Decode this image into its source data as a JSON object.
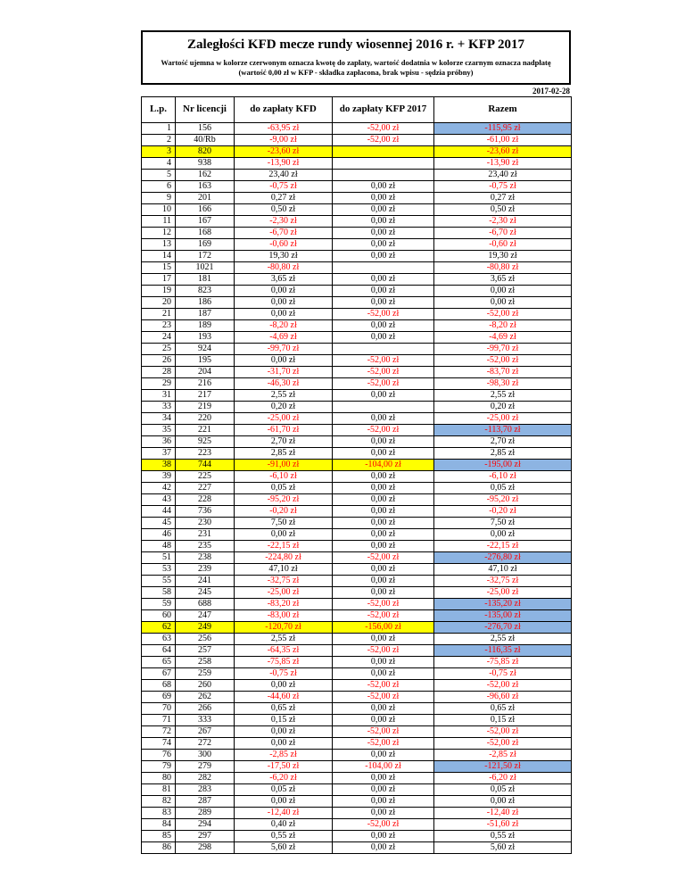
{
  "document": {
    "title": "Zaległości KFD mecze rundy wiosennej 2016 r. + KFP 2017",
    "note_line1": "Wartość ujemna w kolorze czerwonym oznacza kwotę do zapłaty, wartość dodatnia w kolorze czarnym oznacza nadpłatę",
    "note_line2": "(wartość 0,00 zł w KFP - składka zapłacona, brak wpisu - sędzia próbny)",
    "date": "2017-02-28"
  },
  "colors": {
    "negative_text": "#ff0000",
    "positive_text": "#000000",
    "row_highlight_yellow": "#ffff00",
    "razem_highlight_blue": "#8db4e2"
  },
  "table": {
    "columns": [
      "L.p.",
      "Nr licencji",
      "do zapłaty KFD",
      "do zapłaty KFP 2017",
      "Razem"
    ],
    "rows": [
      {
        "lp": "1",
        "nr": "156",
        "kfd": "-63,95 zł",
        "kfp": "-52,00 zł",
        "razem": "-115,95 zł",
        "razem_bg": "blue"
      },
      {
        "lp": "2",
        "nr": "40/Rb",
        "kfd": "-9,00 zł",
        "kfp": "-52,00 zł",
        "razem": "-61,00 zł"
      },
      {
        "lp": "3",
        "nr": "820",
        "kfd": "-23,60 zł",
        "kfp": "",
        "razem": "-23,60 zł",
        "row_bg": "yellow"
      },
      {
        "lp": "4",
        "nr": "938",
        "kfd": "-13,90 zł",
        "kfp": "",
        "razem": "-13,90 zł"
      },
      {
        "lp": "5",
        "nr": "162",
        "kfd": "23,40 zł",
        "kfp": "",
        "razem": "23,40 zł"
      },
      {
        "lp": "6",
        "nr": "163",
        "kfd": "-0,75 zł",
        "kfp": "0,00 zł",
        "razem": "-0,75 zł"
      },
      {
        "lp": "9",
        "nr": "201",
        "kfd": "0,27 zł",
        "kfp": "0,00 zł",
        "razem": "0,27 zł"
      },
      {
        "lp": "10",
        "nr": "166",
        "kfd": "0,50 zł",
        "kfp": "0,00 zł",
        "razem": "0,50 zł"
      },
      {
        "lp": "11",
        "nr": "167",
        "kfd": "-2,30 zł",
        "kfp": "0,00 zł",
        "razem": "-2,30 zł"
      },
      {
        "lp": "12",
        "nr": "168",
        "kfd": "-6,70 zł",
        "kfp": "0,00 zł",
        "razem": "-6,70 zł"
      },
      {
        "lp": "13",
        "nr": "169",
        "kfd": "-0,60 zł",
        "kfp": "0,00 zł",
        "razem": "-0,60 zł"
      },
      {
        "lp": "14",
        "nr": "172",
        "kfd": "19,30 zł",
        "kfp": "0,00 zł",
        "razem": "19,30 zł"
      },
      {
        "lp": "15",
        "nr": "1021",
        "kfd": "-80,80 zł",
        "kfp": "",
        "razem": "-80,80 zł"
      },
      {
        "lp": "17",
        "nr": "181",
        "kfd": "3,65 zł",
        "kfp": "0,00 zł",
        "razem": "3,65 zł"
      },
      {
        "lp": "19",
        "nr": "823",
        "kfd": "0,00 zł",
        "kfp": "0,00 zł",
        "razem": "0,00 zł"
      },
      {
        "lp": "20",
        "nr": "186",
        "kfd": "0,00 zł",
        "kfp": "0,00 zł",
        "razem": "0,00 zł"
      },
      {
        "lp": "21",
        "nr": "187",
        "kfd": "0,00 zł",
        "kfp": "-52,00 zł",
        "razem": "-52,00 zł"
      },
      {
        "lp": "23",
        "nr": "189",
        "kfd": "-8,20 zł",
        "kfp": "0,00 zł",
        "razem": "-8,20 zł"
      },
      {
        "lp": "24",
        "nr": "193",
        "kfd": "-4,69 zł",
        "kfp": "0,00 zł",
        "razem": "-4,69 zł"
      },
      {
        "lp": "25",
        "nr": "924",
        "kfd": "-99,70 zł",
        "kfp": "",
        "razem": "-99,70 zł"
      },
      {
        "lp": "26",
        "nr": "195",
        "kfd": "0,00 zł",
        "kfp": "-52,00 zł",
        "razem": "-52,00 zł"
      },
      {
        "lp": "28",
        "nr": "204",
        "kfd": "-31,70 zł",
        "kfp": "-52,00 zł",
        "razem": "-83,70 zł"
      },
      {
        "lp": "29",
        "nr": "216",
        "kfd": "-46,30 zł",
        "kfp": "-52,00 zł",
        "razem": "-98,30 zł"
      },
      {
        "lp": "31",
        "nr": "217",
        "kfd": "2,55 zł",
        "kfp": "0,00 zł",
        "razem": "2,55 zł"
      },
      {
        "lp": "33",
        "nr": "219",
        "kfd": "0,20 zł",
        "kfp": "",
        "razem": "0,20 zł"
      },
      {
        "lp": "34",
        "nr": "220",
        "kfd": "-25,00 zł",
        "kfp": "0,00 zł",
        "razem": "-25,00 zł"
      },
      {
        "lp": "35",
        "nr": "221",
        "kfd": "-61,70 zł",
        "kfp": "-52,00 zł",
        "razem": "-113,70 zł",
        "razem_bg": "blue"
      },
      {
        "lp": "36",
        "nr": "925",
        "kfd": "2,70 zł",
        "kfp": "0,00 zł",
        "razem": "2,70 zł"
      },
      {
        "lp": "37",
        "nr": "223",
        "kfd": "2,85 zł",
        "kfp": "0,00 zł",
        "razem": "2,85 zł"
      },
      {
        "lp": "38",
        "nr": "744",
        "kfd": "-91,00 zł",
        "kfp": "-104,00 zł",
        "razem": "-195,00 zł",
        "row_bg": "yellow",
        "razem_bg": "blue"
      },
      {
        "lp": "39",
        "nr": "225",
        "kfd": "-6,10 zł",
        "kfp": "0,00 zł",
        "razem": "-6,10 zł"
      },
      {
        "lp": "42",
        "nr": "227",
        "kfd": "0,05 zł",
        "kfp": "0,00 zł",
        "razem": "0,05 zł"
      },
      {
        "lp": "43",
        "nr": "228",
        "kfd": "-95,20 zł",
        "kfp": "0,00 zł",
        "razem": "-95,20 zł"
      },
      {
        "lp": "44",
        "nr": "736",
        "kfd": "-0,20 zł",
        "kfp": "0,00 zł",
        "razem": "-0,20 zł"
      },
      {
        "lp": "45",
        "nr": "230",
        "kfd": "7,50 zł",
        "kfp": "0,00 zł",
        "razem": "7,50 zł"
      },
      {
        "lp": "46",
        "nr": "231",
        "kfd": "0,00 zł",
        "kfp": "0,00 zł",
        "razem": "0,00 zł"
      },
      {
        "lp": "48",
        "nr": "235",
        "kfd": "-22,15 zł",
        "kfp": "0,00 zł",
        "razem": "-22,15 zł"
      },
      {
        "lp": "51",
        "nr": "238",
        "kfd": "-224,80 zł",
        "kfp": "-52,00 zł",
        "razem": "-276,80 zł",
        "razem_bg": "blue"
      },
      {
        "lp": "53",
        "nr": "239",
        "kfd": "47,10 zł",
        "kfp": "0,00 zł",
        "razem": "47,10 zł"
      },
      {
        "lp": "55",
        "nr": "241",
        "kfd": "-32,75 zł",
        "kfp": "0,00 zł",
        "razem": "-32,75 zł"
      },
      {
        "lp": "58",
        "nr": "245",
        "kfd": "-25,00 zł",
        "kfp": "0,00 zł",
        "razem": "-25,00 zł"
      },
      {
        "lp": "59",
        "nr": "688",
        "kfd": "-83,20 zł",
        "kfp": "-52,00 zł",
        "razem": "-135,20 zł",
        "razem_bg": "blue"
      },
      {
        "lp": "60",
        "nr": "247",
        "kfd": "-83,00 zł",
        "kfp": "-52,00 zł",
        "razem": "-135,00 zł",
        "razem_bg": "blue"
      },
      {
        "lp": "62",
        "nr": "249",
        "kfd": "-120,70 zł",
        "kfp": "-156,00 zł",
        "razem": "-276,70 zł",
        "row_bg": "yellow",
        "razem_bg": "blue"
      },
      {
        "lp": "63",
        "nr": "256",
        "kfd": "2,55 zł",
        "kfp": "0,00 zł",
        "razem": "2,55 zł"
      },
      {
        "lp": "64",
        "nr": "257",
        "kfd": "-64,35 zł",
        "kfp": "-52,00 zł",
        "razem": "-116,35 zł",
        "razem_bg": "blue"
      },
      {
        "lp": "65",
        "nr": "258",
        "kfd": "-75,85 zł",
        "kfp": "0,00 zł",
        "razem": "-75,85 zł"
      },
      {
        "lp": "67",
        "nr": "259",
        "kfd": "-0,75 zł",
        "kfp": "0,00 zł",
        "razem": "-0,75 zł"
      },
      {
        "lp": "68",
        "nr": "260",
        "kfd": "0,00 zł",
        "kfp": "-52,00 zł",
        "razem": "-52,00 zł"
      },
      {
        "lp": "69",
        "nr": "262",
        "kfd": "-44,60 zł",
        "kfp": "-52,00 zł",
        "razem": "-96,60 zł"
      },
      {
        "lp": "70",
        "nr": "266",
        "kfd": "0,65 zł",
        "kfp": "0,00 zł",
        "razem": "0,65 zł"
      },
      {
        "lp": "71",
        "nr": "333",
        "kfd": "0,15 zł",
        "kfp": "0,00 zł",
        "razem": "0,15 zł"
      },
      {
        "lp": "72",
        "nr": "267",
        "kfd": "0,00 zł",
        "kfp": "-52,00 zł",
        "razem": "-52,00 zł"
      },
      {
        "lp": "74",
        "nr": "272",
        "kfd": "0,00 zł",
        "kfp": "-52,00 zł",
        "razem": "-52,00 zł"
      },
      {
        "lp": "76",
        "nr": "300",
        "kfd": "-2,85 zł",
        "kfp": "0,00 zł",
        "razem": "-2,85 zł"
      },
      {
        "lp": "79",
        "nr": "279",
        "kfd": "-17,50 zł",
        "kfp": "-104,00 zł",
        "razem": "-121,50 zł",
        "razem_bg": "blue"
      },
      {
        "lp": "80",
        "nr": "282",
        "kfd": "-6,20 zł",
        "kfp": "0,00 zł",
        "razem": "-6,20 zł"
      },
      {
        "lp": "81",
        "nr": "283",
        "kfd": "0,05 zł",
        "kfp": "0,00 zł",
        "razem": "0,05 zł"
      },
      {
        "lp": "82",
        "nr": "287",
        "kfd": "0,00 zł",
        "kfp": "0,00 zł",
        "razem": "0,00 zł"
      },
      {
        "lp": "83",
        "nr": "289",
        "kfd": "-12,40 zł",
        "kfp": "0,00 zł",
        "razem": "-12,40 zł"
      },
      {
        "lp": "84",
        "nr": "294",
        "kfd": "0,40 zł",
        "kfp": "-52,00 zł",
        "razem": "-51,60 zł"
      },
      {
        "lp": "85",
        "nr": "297",
        "kfd": "0,55 zł",
        "kfp": "0,00 zł",
        "razem": "0,55 zł"
      },
      {
        "lp": "86",
        "nr": "298",
        "kfd": "5,60 zł",
        "kfp": "0,00 zł",
        "razem": "5,60 zł"
      }
    ]
  }
}
